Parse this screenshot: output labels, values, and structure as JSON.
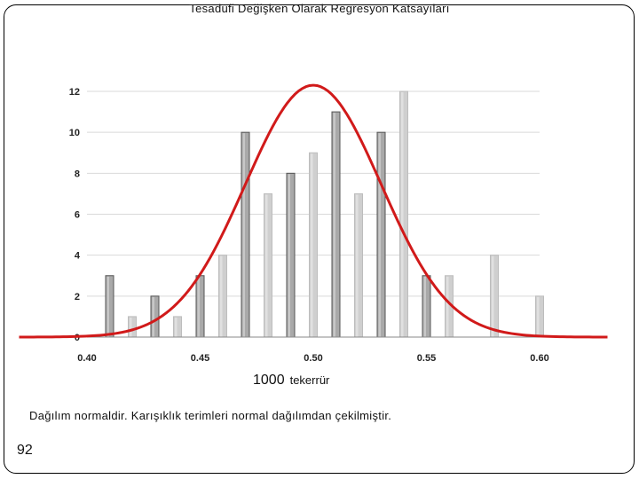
{
  "slide": {
    "title": "Tesadüfi Değişken Olarak Regresyon Katsayıları",
    "repetitions_number": "1000",
    "repetitions_word": "tekerrür",
    "caption": "Dağılım normaldir. Karışıklık terimleri normal dağılımdan çekilmiştir.",
    "page_number": "92"
  },
  "chart_data": {
    "type": "bar",
    "title": "",
    "xlabel": "",
    "ylabel": "",
    "xlim": [
      0.37,
      0.63
    ],
    "ylim": [
      0,
      12
    ],
    "y_ticks": [
      "0",
      "2",
      "4",
      "6",
      "8",
      "10",
      "12"
    ],
    "x_ticks": [
      "0.40",
      "0.45",
      "0.50",
      "0.55",
      "0.60"
    ],
    "grid": true,
    "bar_color_dark": "#a9a9a9",
    "bar_color_light": "#cfcfcf",
    "curve_color": "#d11a1a",
    "bars": [
      {
        "x": 0.41,
        "value": 3
      },
      {
        "x": 0.42,
        "value": 1
      },
      {
        "x": 0.43,
        "value": 2
      },
      {
        "x": 0.44,
        "value": 1
      },
      {
        "x": 0.45,
        "value": 3
      },
      {
        "x": 0.46,
        "value": 4
      },
      {
        "x": 0.47,
        "value": 10
      },
      {
        "x": 0.48,
        "value": 7
      },
      {
        "x": 0.49,
        "value": 8
      },
      {
        "x": 0.5,
        "value": 9
      },
      {
        "x": 0.51,
        "value": 11
      },
      {
        "x": 0.52,
        "value": 7
      },
      {
        "x": 0.53,
        "value": 10
      },
      {
        "x": 0.54,
        "value": 12
      },
      {
        "x": 0.55,
        "value": 3
      },
      {
        "x": 0.56,
        "value": 3
      },
      {
        "x": 0.58,
        "value": 4
      },
      {
        "x": 0.6,
        "value": 2
      }
    ],
    "normal_curve": {
      "mean": 0.5,
      "sd": 0.03,
      "peak": 12.3,
      "x_range": [
        0.37,
        0.63
      ]
    }
  }
}
